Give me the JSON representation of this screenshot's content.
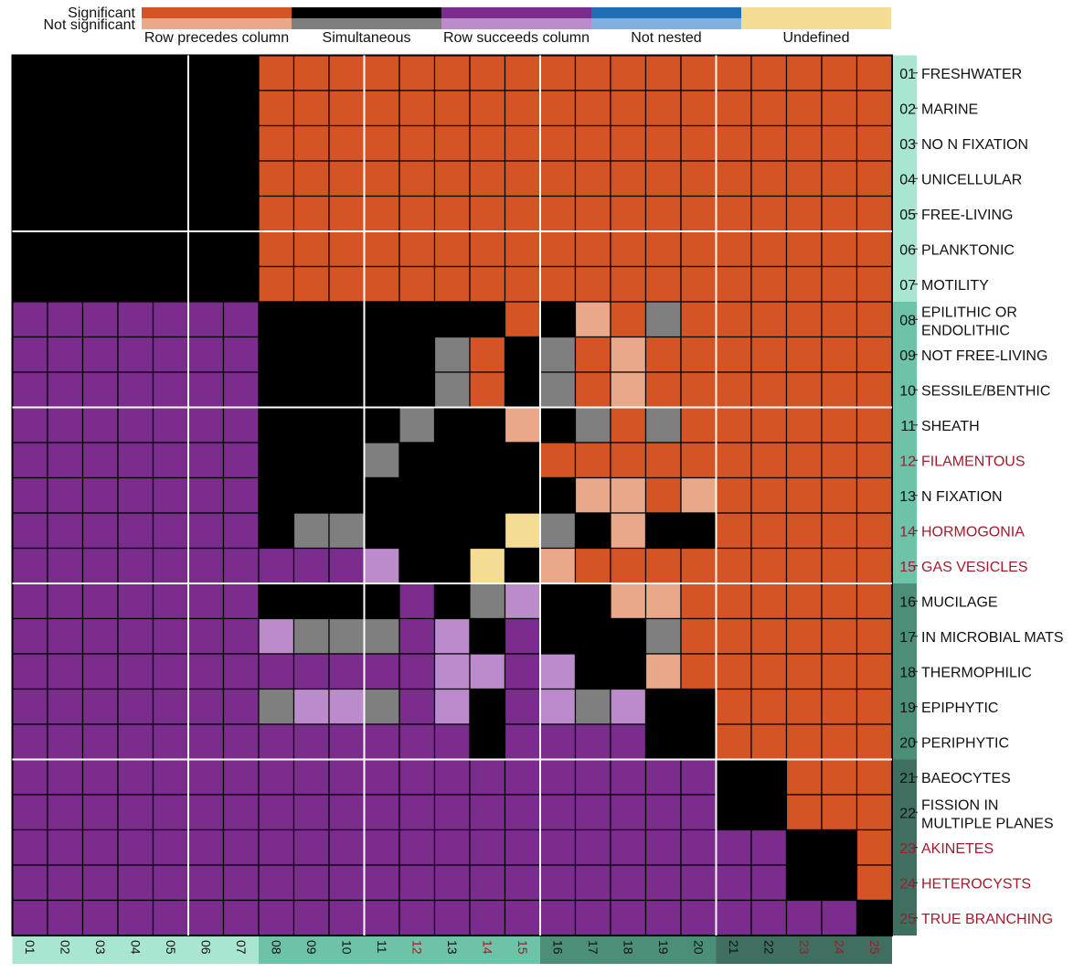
{
  "chart_data": {
    "type": "heatmap",
    "legend": {
      "row_labels": [
        "Significant",
        "Not significant"
      ],
      "categories": [
        {
          "key": "P",
          "name": "Row precedes column",
          "significant_color": "#D55425",
          "not_significant_color": "#E9A88A"
        },
        {
          "key": "S",
          "name": "Simultaneous",
          "significant_color": "#000000",
          "not_significant_color": "#7F7F7F"
        },
        {
          "key": "F",
          "name": "Row succeeds column",
          "significant_color": "#7B2D8E",
          "not_significant_color": "#BC8BCB"
        },
        {
          "key": "N",
          "name": "Not nested",
          "significant_color": "#1F6DB5",
          "not_significant_color": "#7FB0DE"
        },
        {
          "key": "U",
          "name": "Undefined",
          "significant_color": "#F5DC95",
          "not_significant_color": "#F5DC95"
        }
      ]
    },
    "traits": [
      {
        "num": "01",
        "name": "FRESHWATER",
        "highlight": false
      },
      {
        "num": "02",
        "name": "MARINE",
        "highlight": false
      },
      {
        "num": "03",
        "name": "NO N FIXATION",
        "highlight": false
      },
      {
        "num": "04",
        "name": "UNICELLULAR",
        "highlight": false
      },
      {
        "num": "05",
        "name": "FREE-LIVING",
        "highlight": false
      },
      {
        "num": "06",
        "name": "PLANKTONIC",
        "highlight": false
      },
      {
        "num": "07",
        "name": "MOTILITY",
        "highlight": false
      },
      {
        "num": "08",
        "name": "EPILITHIC OR ENDOLITHIC",
        "highlight": false
      },
      {
        "num": "09",
        "name": "NOT FREE-LIVING",
        "highlight": false
      },
      {
        "num": "10",
        "name": "SESSILE/BENTHIC",
        "highlight": false
      },
      {
        "num": "11",
        "name": "SHEATH",
        "highlight": false
      },
      {
        "num": "12",
        "name": "FILAMENTOUS",
        "highlight": true
      },
      {
        "num": "13",
        "name": "N FIXATION",
        "highlight": false
      },
      {
        "num": "14",
        "name": "HORMOGONIA",
        "highlight": true
      },
      {
        "num": "15",
        "name": "GAS VESICLES",
        "highlight": true
      },
      {
        "num": "16",
        "name": "MUCILAGE",
        "highlight": false
      },
      {
        "num": "17",
        "name": "IN MICROBIAL MATS",
        "highlight": false
      },
      {
        "num": "18",
        "name": "THERMOPHILIC",
        "highlight": false
      },
      {
        "num": "19",
        "name": "EPIPHYTIC",
        "highlight": false
      },
      {
        "num": "20",
        "name": "PERIPHYTIC",
        "highlight": false
      },
      {
        "num": "21",
        "name": "BAEOCYTES",
        "highlight": false
      },
      {
        "num": "22",
        "name": "FISSION IN MULTIPLE PLANES",
        "highlight": false
      },
      {
        "num": "23",
        "name": "AKINETES",
        "highlight": true
      },
      {
        "num": "24",
        "name": "HETEROCYSTS",
        "highlight": true
      },
      {
        "num": "25",
        "name": "TRUE BRANCHING",
        "highlight": true
      }
    ],
    "matrix_codes": {
      "P": "Row precedes column (significant)",
      "p": "Row precedes column (not significant)",
      "S": "Simultaneous (significant)",
      "s": "Simultaneous (not significant)",
      "F": "Row succeeds column (significant)",
      "f": "Row succeeds column (not significant)",
      "U": "Undefined"
    },
    "matrix": [
      "SSSSSSSPPPPPPPPPPPPPPPPPP",
      "SSSSSSSPPPPPPPPPPPPPPPPPP",
      "SSSSSSSPPPPPPPPPPPPPPPPPP",
      "SSSSSSSPPPPPPPPPPPPPPPPPP",
      "SSSSSSSPPPPPPPPPPPPPPPPPP",
      "SSSSSSSPPPPPPPPPPPPPPPPPP",
      "SSSSSSSPPPPPPPPPPPPPPPPPP",
      "FFFFFFFSSSSSSSPSpPsPPPPPP",
      "FFFFFFFSSSSSsPSsPpPPPPPPP",
      "FFFFFFFSSSSSsPSsPpPPPPPPP",
      "FFFFFFFSSSSsSSpSsPsPPPPPP",
      "FFFFFFFSSSsSSSSPPPPPPPPPP",
      "FFFFFFFSSSSSSSSSppPpPPPPP",
      "FFFFFFFSssSSSSUsSpSSPPPPP",
      "FFFFFFFFFFfSSUSpPPPPPPPPP",
      "FFFFFFFSSSSFSsfSSppPPPPPP",
      "FFFFFFFfsssFfSFSSSsPPPPPP",
      "FFFFFFFFFFFFffFfSSpPPPPPP",
      "FFFFFFFsffsFfSFfsfSSPPPPP",
      "FFFFFFFFFFFFFSFFFFSSPPPPP",
      "FFFFFFFFFFFFFFFFFFFFSSPPP",
      "FFFFFFFFFFFFFFFFFFFFSSPPP",
      "FFFFFFFFFFFFFFFFFFFFFFSSP",
      "FFFFFFFFFFFFFFFFFFFFFFSSP",
      "FFFFFFFFFFFFFFFFFFFFFFFFS"
    ],
    "cluster_boundaries_after": [
      5,
      10,
      15,
      20
    ],
    "sidebar_colors": [
      "#A8E6D2",
      "#6DC3A7",
      "#5BAF91",
      "#4B8F78",
      "#3E6F60"
    ],
    "sidebar_groups": [
      [
        1,
        7,
        0
      ],
      [
        8,
        15,
        1
      ],
      [
        16,
        20,
        3
      ],
      [
        21,
        25,
        4
      ]
    ],
    "highlight_color": "#A31A2E",
    "label_color": "#111111",
    "lines_color": "#FFFFFF"
  }
}
